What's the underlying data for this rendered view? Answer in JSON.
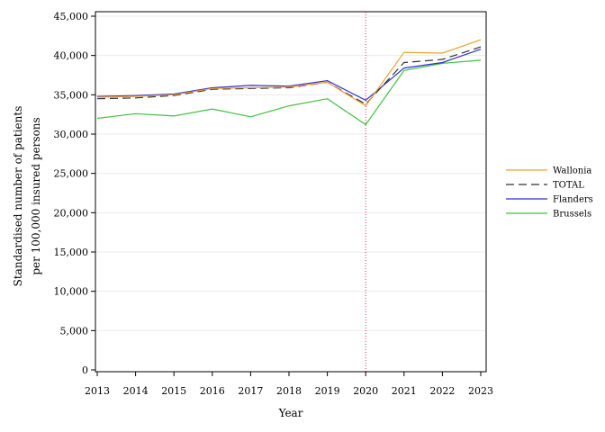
{
  "chart_data": {
    "type": "line",
    "title": "",
    "xlabel": "Year",
    "ylabel_lines": [
      "Standardised number of patients",
      "per 100,000 insured persons"
    ],
    "x": [
      2013,
      2014,
      2015,
      2016,
      2017,
      2018,
      2019,
      2020,
      2021,
      2022,
      2023
    ],
    "xticks": [
      "2013",
      "2014",
      "2015",
      "2016",
      "2017",
      "2018",
      "2019",
      "2020",
      "2021",
      "2022",
      "2023"
    ],
    "ylim": [
      0,
      45000
    ],
    "yticks": [
      0,
      5000,
      10000,
      15000,
      20000,
      25000,
      30000,
      35000,
      40000,
      45000
    ],
    "ytick_labels": [
      "0",
      "5,000",
      "10,000",
      "15,000",
      "20,000",
      "25,000",
      "30,000",
      "35,000",
      "40,000",
      "45,000"
    ],
    "grid": "horizontal",
    "legend_position": "right",
    "vertical_marker": {
      "x": 2020,
      "color": "#cc3355",
      "style": "dotted"
    },
    "series": [
      {
        "name": "Wallonia",
        "color": "#f0a030",
        "dash": "",
        "values": [
          34700,
          34800,
          35000,
          35800,
          35900,
          36000,
          36600,
          33600,
          40400,
          40300,
          42000
        ]
      },
      {
        "name": "TOTAL",
        "color": "#333333",
        "dash": "9,5",
        "values": [
          34500,
          34600,
          34900,
          35700,
          35800,
          35900,
          36600,
          33800,
          39100,
          39500,
          41100
        ]
      },
      {
        "name": "Flanders",
        "color": "#3030d0",
        "dash": "",
        "values": [
          34800,
          34900,
          35100,
          35900,
          36200,
          36100,
          36800,
          34300,
          38400,
          39100,
          40800
        ]
      },
      {
        "name": "Brussels",
        "color": "#40c040",
        "dash": "",
        "values": [
          32000,
          32600,
          32300,
          33200,
          32200,
          33600,
          34500,
          31200,
          38100,
          39000,
          39400
        ]
      }
    ]
  }
}
